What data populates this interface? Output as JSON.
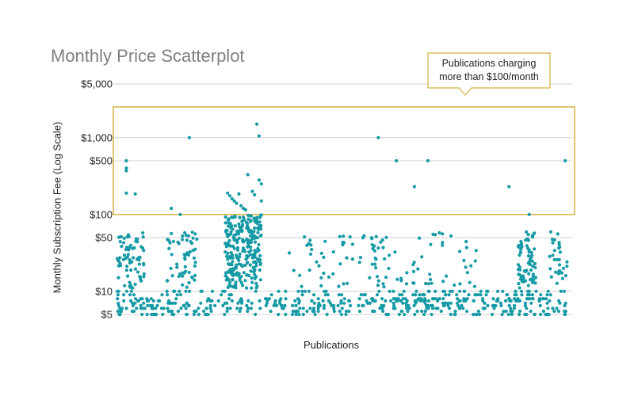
{
  "chart_data": {
    "type": "scatter",
    "title": "Monthly Price Scatterplot",
    "xlabel": "Publications",
    "ylabel": "Monthly Subscription Fee (Log Scale)",
    "y_scale": "log",
    "ylim": [
      5,
      5000
    ],
    "y_ticks": [
      {
        "value": 5000,
        "label": "$5,000"
      },
      {
        "value": 1000,
        "label": "$1,000"
      },
      {
        "value": 500,
        "label": "$500"
      },
      {
        "value": 100,
        "label": "$100"
      },
      {
        "value": 50,
        "label": "$50"
      },
      {
        "value": 10,
        "label": "$10"
      },
      {
        "value": 5,
        "label": "$5"
      }
    ],
    "grid": true,
    "marker_color": "#159aa6",
    "highlight_color": "#d4b13f",
    "annotation": {
      "lines": [
        "Publications charging",
        "more than $100/month"
      ],
      "highlight_range": [
        110,
        5000
      ]
    },
    "series": [
      {
        "values": [
          {
            "x": 0.02,
            "y": 500
          },
          {
            "x": 0.02,
            "y": 400
          },
          {
            "x": 0.02,
            "y": 370
          },
          {
            "x": 0.02,
            "y": 190
          },
          {
            "x": 0.04,
            "y": 185
          },
          {
            "x": 0.16,
            "y": 1000
          },
          {
            "x": 0.12,
            "y": 120
          },
          {
            "x": 0.14,
            "y": 100
          },
          {
            "x": 0.245,
            "y": 190
          },
          {
            "x": 0.25,
            "y": 175
          },
          {
            "x": 0.255,
            "y": 160
          },
          {
            "x": 0.26,
            "y": 150
          },
          {
            "x": 0.265,
            "y": 140
          },
          {
            "x": 0.27,
            "y": 185
          },
          {
            "x": 0.275,
            "y": 130
          },
          {
            "x": 0.28,
            "y": 120
          },
          {
            "x": 0.285,
            "y": 115
          },
          {
            "x": 0.29,
            "y": 330
          },
          {
            "x": 0.3,
            "y": 200
          },
          {
            "x": 0.305,
            "y": 180
          },
          {
            "x": 0.31,
            "y": 1500
          },
          {
            "x": 0.315,
            "y": 1050
          },
          {
            "x": 0.315,
            "y": 280
          },
          {
            "x": 0.32,
            "y": 250
          },
          {
            "x": 0.32,
            "y": 150
          },
          {
            "x": 0.58,
            "y": 1000
          },
          {
            "x": 0.62,
            "y": 500
          },
          {
            "x": 0.66,
            "y": 230
          },
          {
            "x": 0.69,
            "y": 500
          },
          {
            "x": 0.87,
            "y": 230
          },
          {
            "x": 0.995,
            "y": 500
          },
          {
            "x": 0.915,
            "y": 100
          }
        ]
      }
    ]
  }
}
